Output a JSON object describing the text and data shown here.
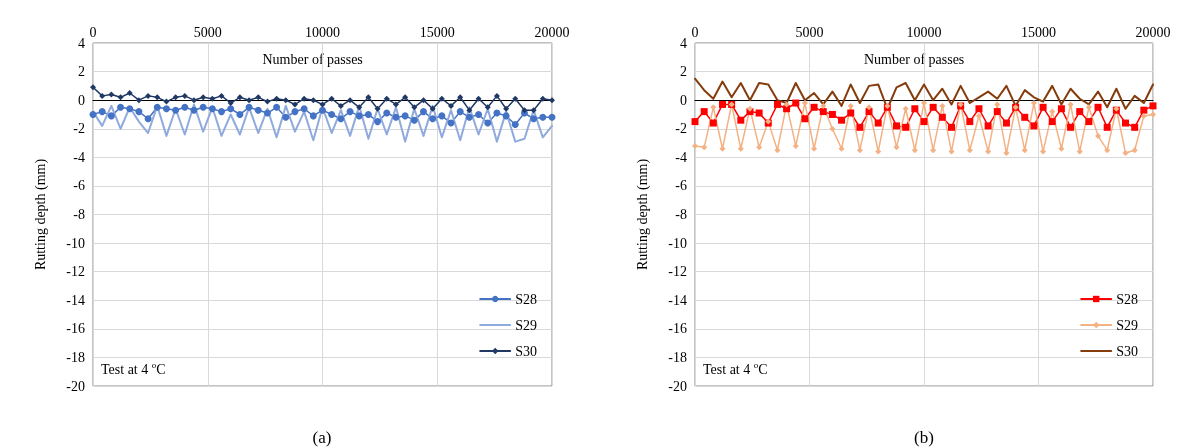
{
  "chart_data": [
    {
      "type": "line",
      "xlabel": "Number of passes",
      "ylabel": "Rutting depth (mm)",
      "annotations": [
        "Test at 4 $^{o}$C",
        "(a)"
      ],
      "x": [
        0,
        400,
        800,
        1200,
        1600,
        2000,
        2400,
        2800,
        3200,
        3600,
        4000,
        4400,
        4800,
        5200,
        5600,
        6000,
        6400,
        6800,
        7200,
        7600,
        8000,
        8400,
        8800,
        9200,
        9600,
        10000,
        10400,
        10800,
        11200,
        11600,
        12000,
        12400,
        12800,
        13200,
        13600,
        14000,
        14400,
        14800,
        15200,
        15600,
        16000,
        16400,
        16800,
        17200,
        17600,
        18000,
        18400,
        18800,
        19200,
        19600,
        20000
      ],
      "xlim": [
        0,
        20000
      ],
      "xticks": [
        0,
        5000,
        10000,
        15000,
        20000
      ],
      "ylim": [
        -20,
        4
      ],
      "yticks": [
        -20,
        -18,
        -16,
        -14,
        -12,
        -10,
        -8,
        -6,
        -4,
        -2,
        0,
        2,
        4
      ],
      "grid": true,
      "legend": "bottom right",
      "series": [
        {
          "name": "S28",
          "color": "#4472c4",
          "marker": "circle",
          "values": [
            -1.0,
            -0.8,
            -1.1,
            -0.5,
            -0.6,
            -0.8,
            -1.3,
            -0.5,
            -0.6,
            -0.7,
            -0.5,
            -0.7,
            -0.5,
            -0.6,
            -0.8,
            -0.6,
            -1.0,
            -0.5,
            -0.7,
            -0.9,
            -0.5,
            -1.2,
            -0.8,
            -0.6,
            -1.1,
            -0.7,
            -1.0,
            -1.3,
            -0.8,
            -1.1,
            -1.0,
            -1.5,
            -0.9,
            -1.2,
            -1.1,
            -1.4,
            -0.8,
            -1.3,
            -1.1,
            -1.6,
            -0.8,
            -1.2,
            -1.0,
            -1.6,
            -0.9,
            -1.1,
            -1.7,
            -0.9,
            -1.3,
            -1.2,
            -1.2
          ]
        },
        {
          "name": "S29",
          "color": "#8faadc",
          "marker": "none",
          "values": [
            -0.8,
            -1.8,
            -0.4,
            -2.0,
            -0.5,
            -1.5,
            -2.3,
            -0.4,
            -2.5,
            -0.6,
            -2.4,
            -0.3,
            -2.2,
            -0.5,
            -2.5,
            -1.0,
            -2.4,
            -0.5,
            -2.3,
            -0.6,
            -2.6,
            -0.4,
            -2.2,
            -0.8,
            -2.8,
            -0.5,
            -2.3,
            -0.7,
            -2.5,
            -0.4,
            -2.7,
            -0.6,
            -2.4,
            -0.5,
            -2.9,
            -0.6,
            -2.5,
            -0.4,
            -2.6,
            -0.7,
            -2.8,
            -0.5,
            -2.4,
            -0.6,
            -2.9,
            -0.8,
            -2.9,
            -2.7,
            -0.7,
            -2.6,
            -1.8
          ]
        },
        {
          "name": "S30",
          "color": "#203864",
          "marker": "diamond",
          "values": [
            0.9,
            0.3,
            0.4,
            0.2,
            0.5,
            0.0,
            0.3,
            0.2,
            -0.1,
            0.2,
            0.3,
            0.0,
            0.2,
            0.1,
            0.3,
            -0.2,
            0.2,
            0.0,
            0.2,
            -0.1,
            0.1,
            0.0,
            -0.3,
            0.1,
            0.0,
            -0.3,
            0.1,
            -0.4,
            0.0,
            -0.5,
            0.2,
            -0.6,
            0.1,
            -0.3,
            0.2,
            -0.5,
            0.0,
            -0.6,
            0.1,
            -0.4,
            0.2,
            -0.7,
            0.1,
            -0.5,
            0.3,
            -0.6,
            0.1,
            -0.7,
            -0.7,
            0.1,
            0.0
          ]
        }
      ]
    },
    {
      "type": "line",
      "xlabel": "Number of passes",
      "ylabel": "Rutting depth (mm)",
      "annotations": [
        "Test at 4 $^{o}$C",
        "(b)"
      ],
      "x": [
        0,
        400,
        800,
        1200,
        1600,
        2000,
        2400,
        2800,
        3200,
        3600,
        4000,
        4400,
        4800,
        5200,
        5600,
        6000,
        6400,
        6800,
        7200,
        7600,
        8000,
        8400,
        8800,
        9200,
        9600,
        10000,
        10400,
        10800,
        11200,
        11600,
        12000,
        12400,
        12800,
        13200,
        13600,
        14000,
        14400,
        14800,
        15200,
        15600,
        16000,
        16400,
        16800,
        17200,
        17600,
        18000,
        18400,
        18800,
        19200,
        19600,
        20000
      ],
      "xlim": [
        0,
        20000
      ],
      "xticks": [
        0,
        5000,
        10000,
        15000,
        20000
      ],
      "ylim": [
        -20,
        4
      ],
      "yticks": [
        -20,
        -18,
        -16,
        -14,
        -12,
        -10,
        -8,
        -6,
        -4,
        -2,
        0,
        2,
        4
      ],
      "grid": true,
      "legend": "bottom right",
      "series": [
        {
          "name": "S28",
          "color": "#ff0000",
          "marker": "square",
          "values": [
            -1.5,
            -0.8,
            -1.6,
            -0.3,
            -0.3,
            -1.4,
            -0.8,
            -0.9,
            -1.6,
            -0.3,
            -0.6,
            -0.2,
            -1.3,
            -0.5,
            -0.8,
            -1.0,
            -1.4,
            -0.9,
            -1.9,
            -0.8,
            -1.6,
            -0.5,
            -1.8,
            -1.9,
            -0.6,
            -1.5,
            -0.5,
            -1.2,
            -1.9,
            -0.4,
            -1.5,
            -0.6,
            -1.8,
            -0.8,
            -1.6,
            -0.5,
            -1.2,
            -1.8,
            -0.5,
            -1.5,
            -0.6,
            -1.9,
            -0.8,
            -1.5,
            -0.5,
            -1.9,
            -0.7,
            -1.6,
            -1.9,
            -0.7,
            -0.4
          ]
        },
        {
          "name": "S29",
          "color": "#f4b183",
          "marker": "diamond",
          "values": [
            -3.2,
            -3.3,
            -0.5,
            -3.4,
            -0.3,
            -3.4,
            -0.6,
            -3.3,
            -1.5,
            -3.5,
            -0.3,
            -3.2,
            -0.2,
            -3.4,
            -0.4,
            -2.0,
            -3.4,
            -0.4,
            -3.5,
            -0.5,
            -3.6,
            -0.4,
            -3.3,
            -0.6,
            -3.5,
            -0.2,
            -3.5,
            -0.4,
            -3.6,
            -0.3,
            -3.5,
            -1.1,
            -3.6,
            -0.3,
            -3.7,
            -0.5,
            -3.5,
            -0.2,
            -3.6,
            -0.8,
            -3.4,
            -0.3,
            -3.6,
            -0.5,
            -2.5,
            -3.5,
            -0.6,
            -3.7,
            -3.5,
            -1.1,
            -1.0
          ]
        },
        {
          "name": "S30",
          "color": "#843c0c",
          "marker": "none",
          "values": [
            1.5,
            0.7,
            0.1,
            1.3,
            0.2,
            1.2,
            0.0,
            1.2,
            1.1,
            0.0,
            -0.2,
            1.2,
            0.0,
            0.5,
            -0.3,
            0.6,
            -0.4,
            1.1,
            -0.2,
            1.0,
            1.1,
            -0.6,
            0.9,
            1.2,
            0.0,
            1.1,
            0.0,
            0.8,
            -0.3,
            1.0,
            -0.2,
            0.2,
            0.6,
            0.1,
            1.0,
            -0.4,
            0.7,
            0.2,
            -0.1,
            1.0,
            -0.3,
            0.8,
            0.1,
            -0.3,
            0.6,
            -0.5,
            0.8,
            -0.6,
            0.3,
            -0.2,
            1.1
          ]
        }
      ]
    }
  ]
}
